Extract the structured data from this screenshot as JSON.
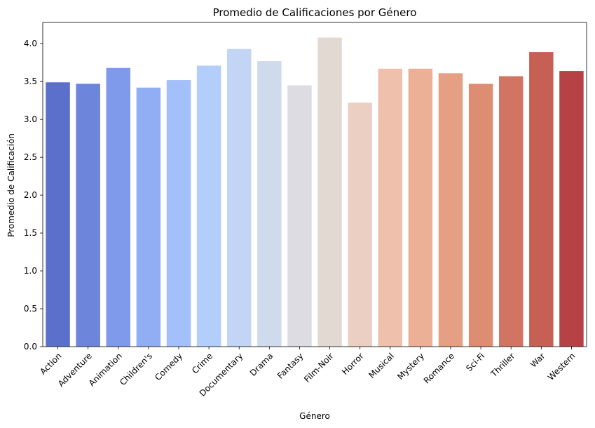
{
  "chart_data": {
    "type": "bar",
    "title": "Promedio de Calificaciones por Género",
    "xlabel": "Género",
    "ylabel": "Promedio de Calificación",
    "categories": [
      "Action",
      "Adventure",
      "Animation",
      "Children's",
      "Comedy",
      "Crime",
      "Documentary",
      "Drama",
      "Fantasy",
      "Film-Noir",
      "Horror",
      "Musical",
      "Mystery",
      "Romance",
      "Sci-Fi",
      "Thriller",
      "War",
      "Western"
    ],
    "values": [
      3.49,
      3.47,
      3.68,
      3.42,
      3.52,
      3.71,
      3.93,
      3.77,
      3.45,
      4.08,
      3.22,
      3.67,
      3.67,
      3.61,
      3.47,
      3.57,
      3.89,
      3.64
    ],
    "colors": [
      "#5a70cb",
      "#6d85db",
      "#7f9aea",
      "#91aef4",
      "#a3c0fa",
      "#b4cefb",
      "#c2d5f5",
      "#d0daed",
      "#dcdce2",
      "#e3d9d3",
      "#eccfc3",
      "#efc0ab",
      "#ebb096",
      "#e5a083",
      "#dd8e72",
      "#d27462",
      "#c65f54",
      "#b64245"
    ],
    "ylim": [
      0,
      4.28
    ],
    "yticks": [
      0.0,
      0.5,
      1.0,
      1.5,
      2.0,
      2.5,
      3.0,
      3.5,
      4.0
    ],
    "ytick_labels": [
      "0.0",
      "0.5",
      "1.0",
      "1.5",
      "2.0",
      "2.5",
      "3.0",
      "3.5",
      "4.0"
    ],
    "grid": false,
    "legend": "none"
  }
}
